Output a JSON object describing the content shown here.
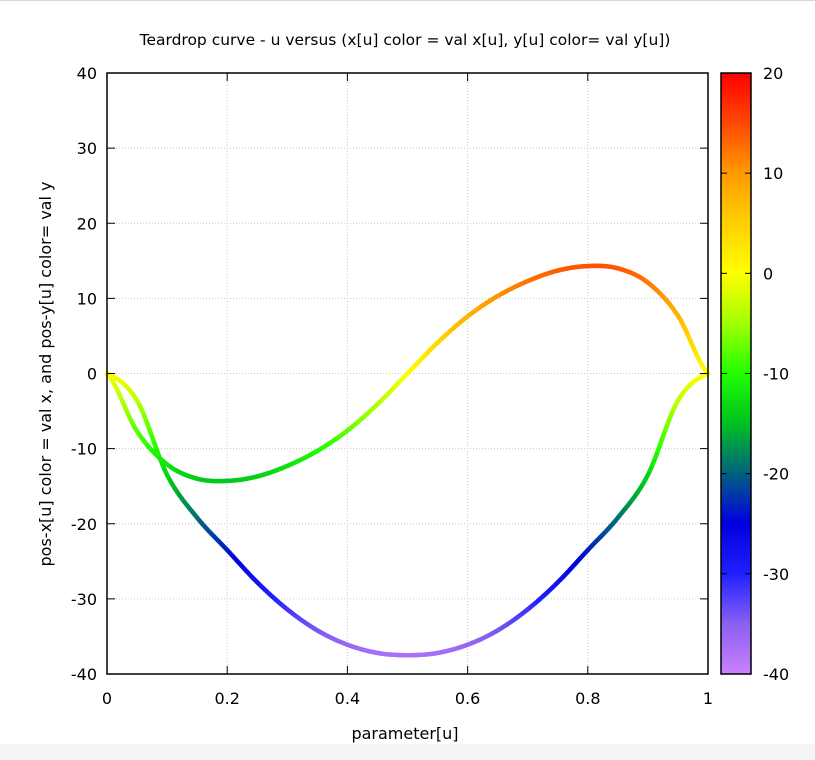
{
  "chart_data": {
    "type": "line",
    "title": "Teardrop curve - u versus (x[u] color = val x[u], y[u] color= val y[u])",
    "xlabel": "parameter[u]",
    "ylabel": "pos-x[u] color = val x, and pos-y[u] color= val y",
    "xlim": [
      0,
      1
    ],
    "ylim": [
      -40,
      40
    ],
    "x_ticks": [
      "0",
      "0.2",
      "0.4",
      "0.6",
      "0.8",
      "1"
    ],
    "y_ticks": [
      "-40",
      "-30",
      "-20",
      "-10",
      "0",
      "10",
      "20",
      "30",
      "40"
    ],
    "grid": true,
    "colorbar": {
      "range": [
        -40,
        20
      ],
      "ticks": [
        "-40",
        "-30",
        "-20",
        "-10",
        "0",
        "10",
        "20"
      ],
      "palette": [
        "#cc80ff",
        "#8a60f0",
        "#2020ff",
        "#0000e0",
        "#006080",
        "#00c020",
        "#20ff00",
        "#a0ff00",
        "#ffff00",
        "#ffd000",
        "#ff9a00",
        "#ff4800",
        "#ff0000"
      ]
    },
    "series": [
      {
        "x": [
          0,
          0.05,
          0.1,
          0.15,
          0.2,
          0.25,
          0.3,
          0.35,
          0.4,
          0.45,
          0.5,
          0.55,
          0.6,
          0.65,
          0.7,
          0.75,
          0.8,
          0.85,
          0.9,
          0.95,
          1
        ],
        "values": [
          0,
          -7.7,
          -12.1,
          -14.0,
          -14.3,
          -13.7,
          -12.3,
          -10.3,
          -7.6,
          -4.1,
          0,
          4.1,
          7.6,
          10.3,
          12.3,
          13.7,
          14.3,
          14.0,
          12.1,
          7.7,
          0
        ]
      },
      {
        "x": [
          0,
          0.05,
          0.1,
          0.15,
          0.2,
          0.25,
          0.3,
          0.35,
          0.4,
          0.45,
          0.5,
          0.55,
          0.6,
          0.65,
          0.7,
          0.75,
          0.8,
          0.85,
          0.9,
          0.95,
          1
        ],
        "values": [
          0,
          -3.6,
          -13.5,
          -19.2,
          -23.5,
          -27.8,
          -31.4,
          -34.2,
          -36.1,
          -37.2,
          -37.5,
          -37.2,
          -36.1,
          -34.2,
          -31.4,
          -27.8,
          -23.5,
          -19.2,
          -13.5,
          -3.6,
          0
        ]
      }
    ]
  }
}
